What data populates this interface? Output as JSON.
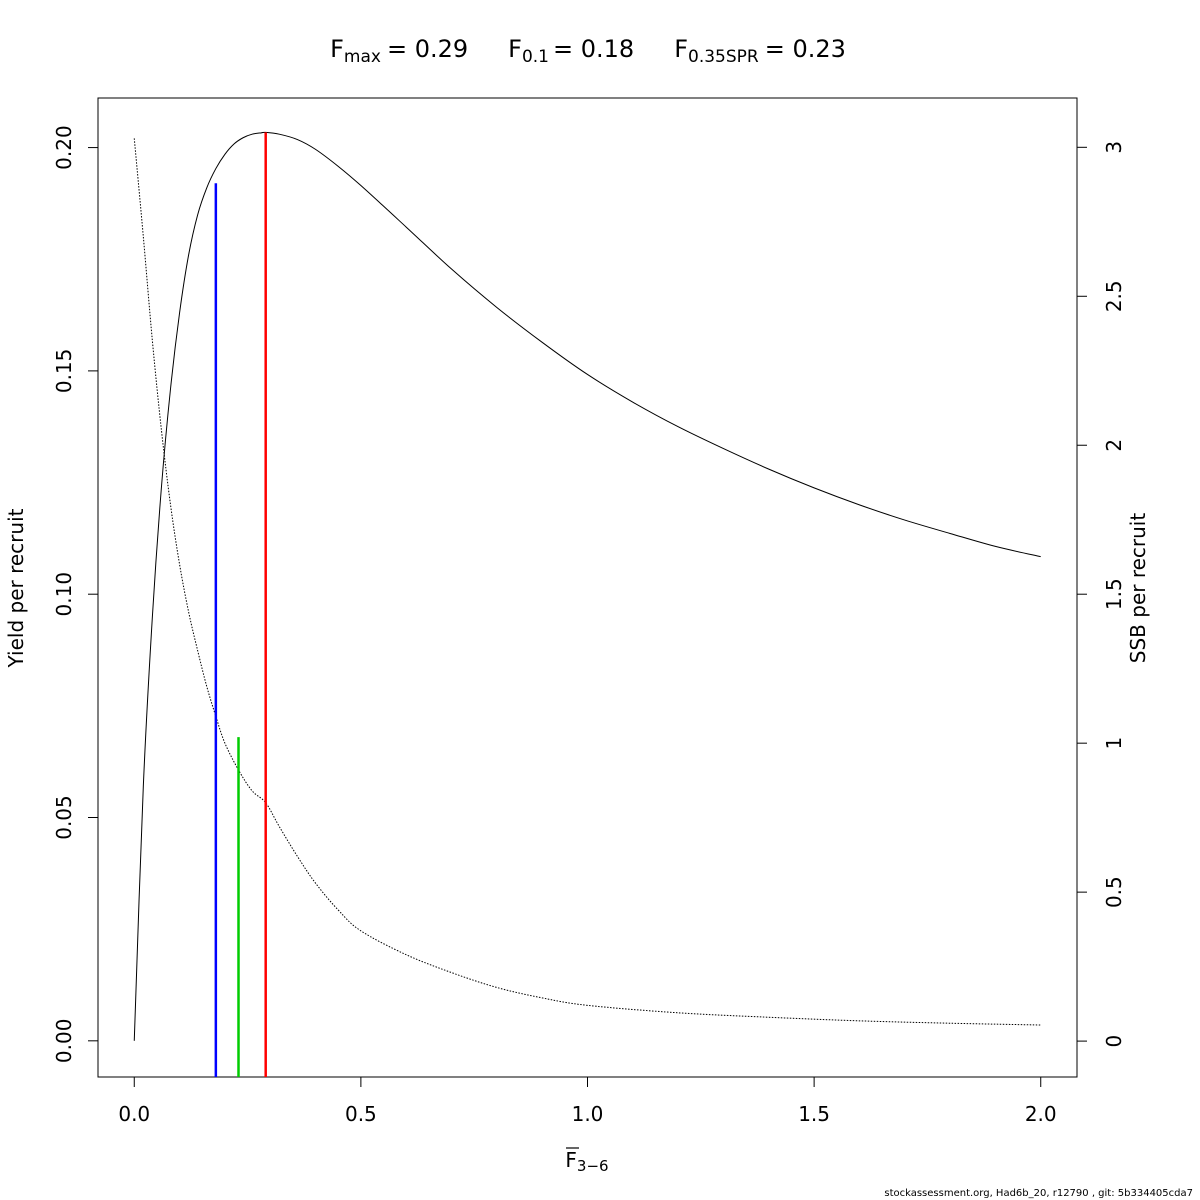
{
  "chart_data": {
    "type": "line",
    "title": {
      "fmax": {
        "symbol": "F",
        "sub": "max",
        "eq": "= 0.29"
      },
      "f01": {
        "symbol": "F",
        "sub": "0.1",
        "eq": "= 0.18"
      },
      "fspr": {
        "symbol": "F",
        "sub": "0.35SPR",
        "eq": "= 0.23"
      }
    },
    "xlabel": {
      "symbol": "F",
      "sub": "3−6"
    },
    "ylabel": "Yield per recruit",
    "y2label": "SSB per recruit",
    "xlim": [
      -0.08,
      2.08
    ],
    "ylim": [
      -0.0081,
      0.2111
    ],
    "y2lim": [
      -0.1205,
      3.1655
    ],
    "xticks": [
      {
        "value": 0.0,
        "label": "0.0"
      },
      {
        "value": 0.5,
        "label": "0.5"
      },
      {
        "value": 1.0,
        "label": "1.0"
      },
      {
        "value": 1.5,
        "label": "1.5"
      },
      {
        "value": 2.0,
        "label": "2.0"
      }
    ],
    "yticks": [
      {
        "value": 0.0,
        "label": "0.00"
      },
      {
        "value": 0.05,
        "label": "0.05"
      },
      {
        "value": 0.1,
        "label": "0.10"
      },
      {
        "value": 0.15,
        "label": "0.15"
      },
      {
        "value": 0.2,
        "label": "0.20"
      }
    ],
    "y2ticks": [
      {
        "value": 0,
        "label": "0"
      },
      {
        "value": 0.5,
        "label": "0.5"
      },
      {
        "value": 1,
        "label": "1"
      },
      {
        "value": 1.5,
        "label": "1.5"
      },
      {
        "value": 2,
        "label": "2"
      },
      {
        "value": 2.5,
        "label": "2.5"
      },
      {
        "value": 3,
        "label": "3"
      }
    ],
    "series": [
      {
        "axis": "left",
        "style": "solid",
        "color": "#000000",
        "x": [
          0,
          0.02,
          0.04,
          0.06,
          0.08,
          0.1,
          0.12,
          0.14,
          0.16,
          0.18,
          0.2,
          0.22,
          0.24,
          0.26,
          0.28,
          0.29,
          0.32,
          0.36,
          0.4,
          0.45,
          0.5,
          0.6,
          0.7,
          0.8,
          0.9,
          1.0,
          1.1,
          1.2,
          1.3,
          1.4,
          1.5,
          1.6,
          1.7,
          1.8,
          1.9,
          2.0
        ],
        "y": [
          0,
          0.057,
          0.095,
          0.124,
          0.146,
          0.163,
          0.176,
          0.185,
          0.191,
          0.1953,
          0.1985,
          0.2008,
          0.2022,
          0.203,
          0.2033,
          0.2034,
          0.203,
          0.2018,
          0.1996,
          0.1958,
          0.1915,
          0.1822,
          0.1728,
          0.1642,
          0.1564,
          0.1492,
          0.143,
          0.1375,
          0.1326,
          0.128,
          0.1238,
          0.12,
          0.1166,
          0.1136,
          0.1107,
          0.1084
        ]
      },
      {
        "axis": "right",
        "style": "dotted",
        "color": "#000000",
        "x": [
          0,
          0.02,
          0.04,
          0.06,
          0.08,
          0.1,
          0.12,
          0.14,
          0.16,
          0.18,
          0.2,
          0.23,
          0.26,
          0.29,
          0.32,
          0.36,
          0.4,
          0.45,
          0.5,
          0.6,
          0.7,
          0.8,
          0.9,
          1.0,
          1.2,
          1.4,
          1.6,
          1.8,
          2.0
        ],
        "y": [
          3.03,
          2.7,
          2.35,
          2.05,
          1.8,
          1.6,
          1.44,
          1.31,
          1.19,
          1.09,
          1.0,
          0.91,
          0.84,
          0.8,
          0.72,
          0.62,
          0.53,
          0.44,
          0.37,
          0.29,
          0.23,
          0.18,
          0.145,
          0.12,
          0.095,
          0.08,
          0.068,
          0.06,
          0.054
        ]
      }
    ],
    "reference_lines": [
      {
        "name": "F0.1",
        "x": 0.18,
        "y_top": 0.192,
        "color": "#0000ff"
      },
      {
        "name": "F0.35SPR",
        "x": 0.23,
        "y_top": 0.068,
        "color": "#00cc00"
      },
      {
        "name": "Fmax",
        "x": 0.29,
        "y_top": 0.2034,
        "color": "#ff0000"
      }
    ],
    "grid": false,
    "footer": "stockassessment.org, Had6b_20, r12790 , git: 5b334405cda7"
  }
}
